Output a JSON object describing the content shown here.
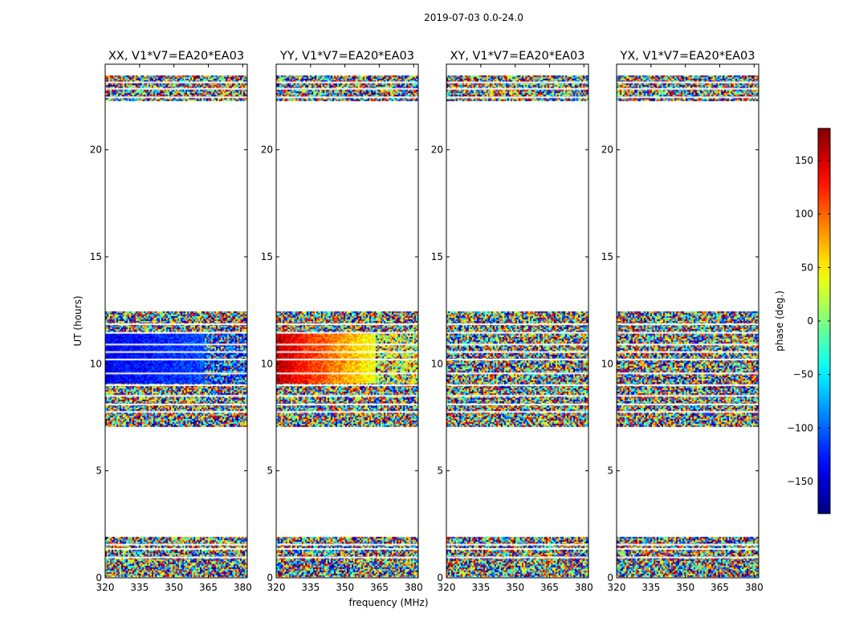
{
  "chart_data": {
    "type": "heatmap",
    "suptitle": "2019-07-03 0.0-24.0",
    "xlabel": "frequency (MHz)",
    "ylabel": "UT (hours)",
    "xlim": [
      320,
      382
    ],
    "ylim": [
      0,
      24
    ],
    "x_ticks": [
      320,
      335,
      350,
      365,
      380
    ],
    "y_ticks": [
      0,
      5,
      10,
      15,
      20
    ],
    "panels": [
      {
        "title": "XX, V1*V7=EA20*EA03",
        "coherent_phase": [
          -140,
          -110
        ],
        "coherent_edge": 363
      },
      {
        "title": "YY, V1*V7=EA20*EA03",
        "coherent_phase": [
          160,
          40
        ],
        "coherent_edge": 363
      },
      {
        "title": "XY, V1*V7=EA20*EA03",
        "coherent_phase": null,
        "coherent_edge": null
      },
      {
        "title": "YX, V1*V7=EA20*EA03",
        "coherent_phase": null,
        "coherent_edge": null
      }
    ],
    "data_bands_hours": [
      [
        0.1,
        1.9
      ],
      [
        7.1,
        12.45
      ],
      [
        22.3,
        23.45
      ]
    ],
    "coherent_band_hours": [
      9.1,
      11.4
    ],
    "gap_lines_hours": [
      0.95,
      1.35,
      1.55,
      7.75,
      8.1,
      8.5,
      9.0,
      9.55,
      10.2,
      10.55,
      10.9,
      11.45,
      11.85,
      22.45,
      22.85,
      23.15
    ],
    "colorbar": {
      "label": "phase (deg.)",
      "range": [
        -180,
        180
      ],
      "ticks": [
        150,
        100,
        50,
        0,
        -50,
        -100,
        -150
      ],
      "tick_labels": [
        "150",
        "100",
        "50",
        "0",
        "−50",
        "−100",
        "−150"
      ],
      "colormap": "jet"
    },
    "colors": {
      "axis": "#000000",
      "background": "#ffffff",
      "gap": "#ffffff"
    }
  }
}
